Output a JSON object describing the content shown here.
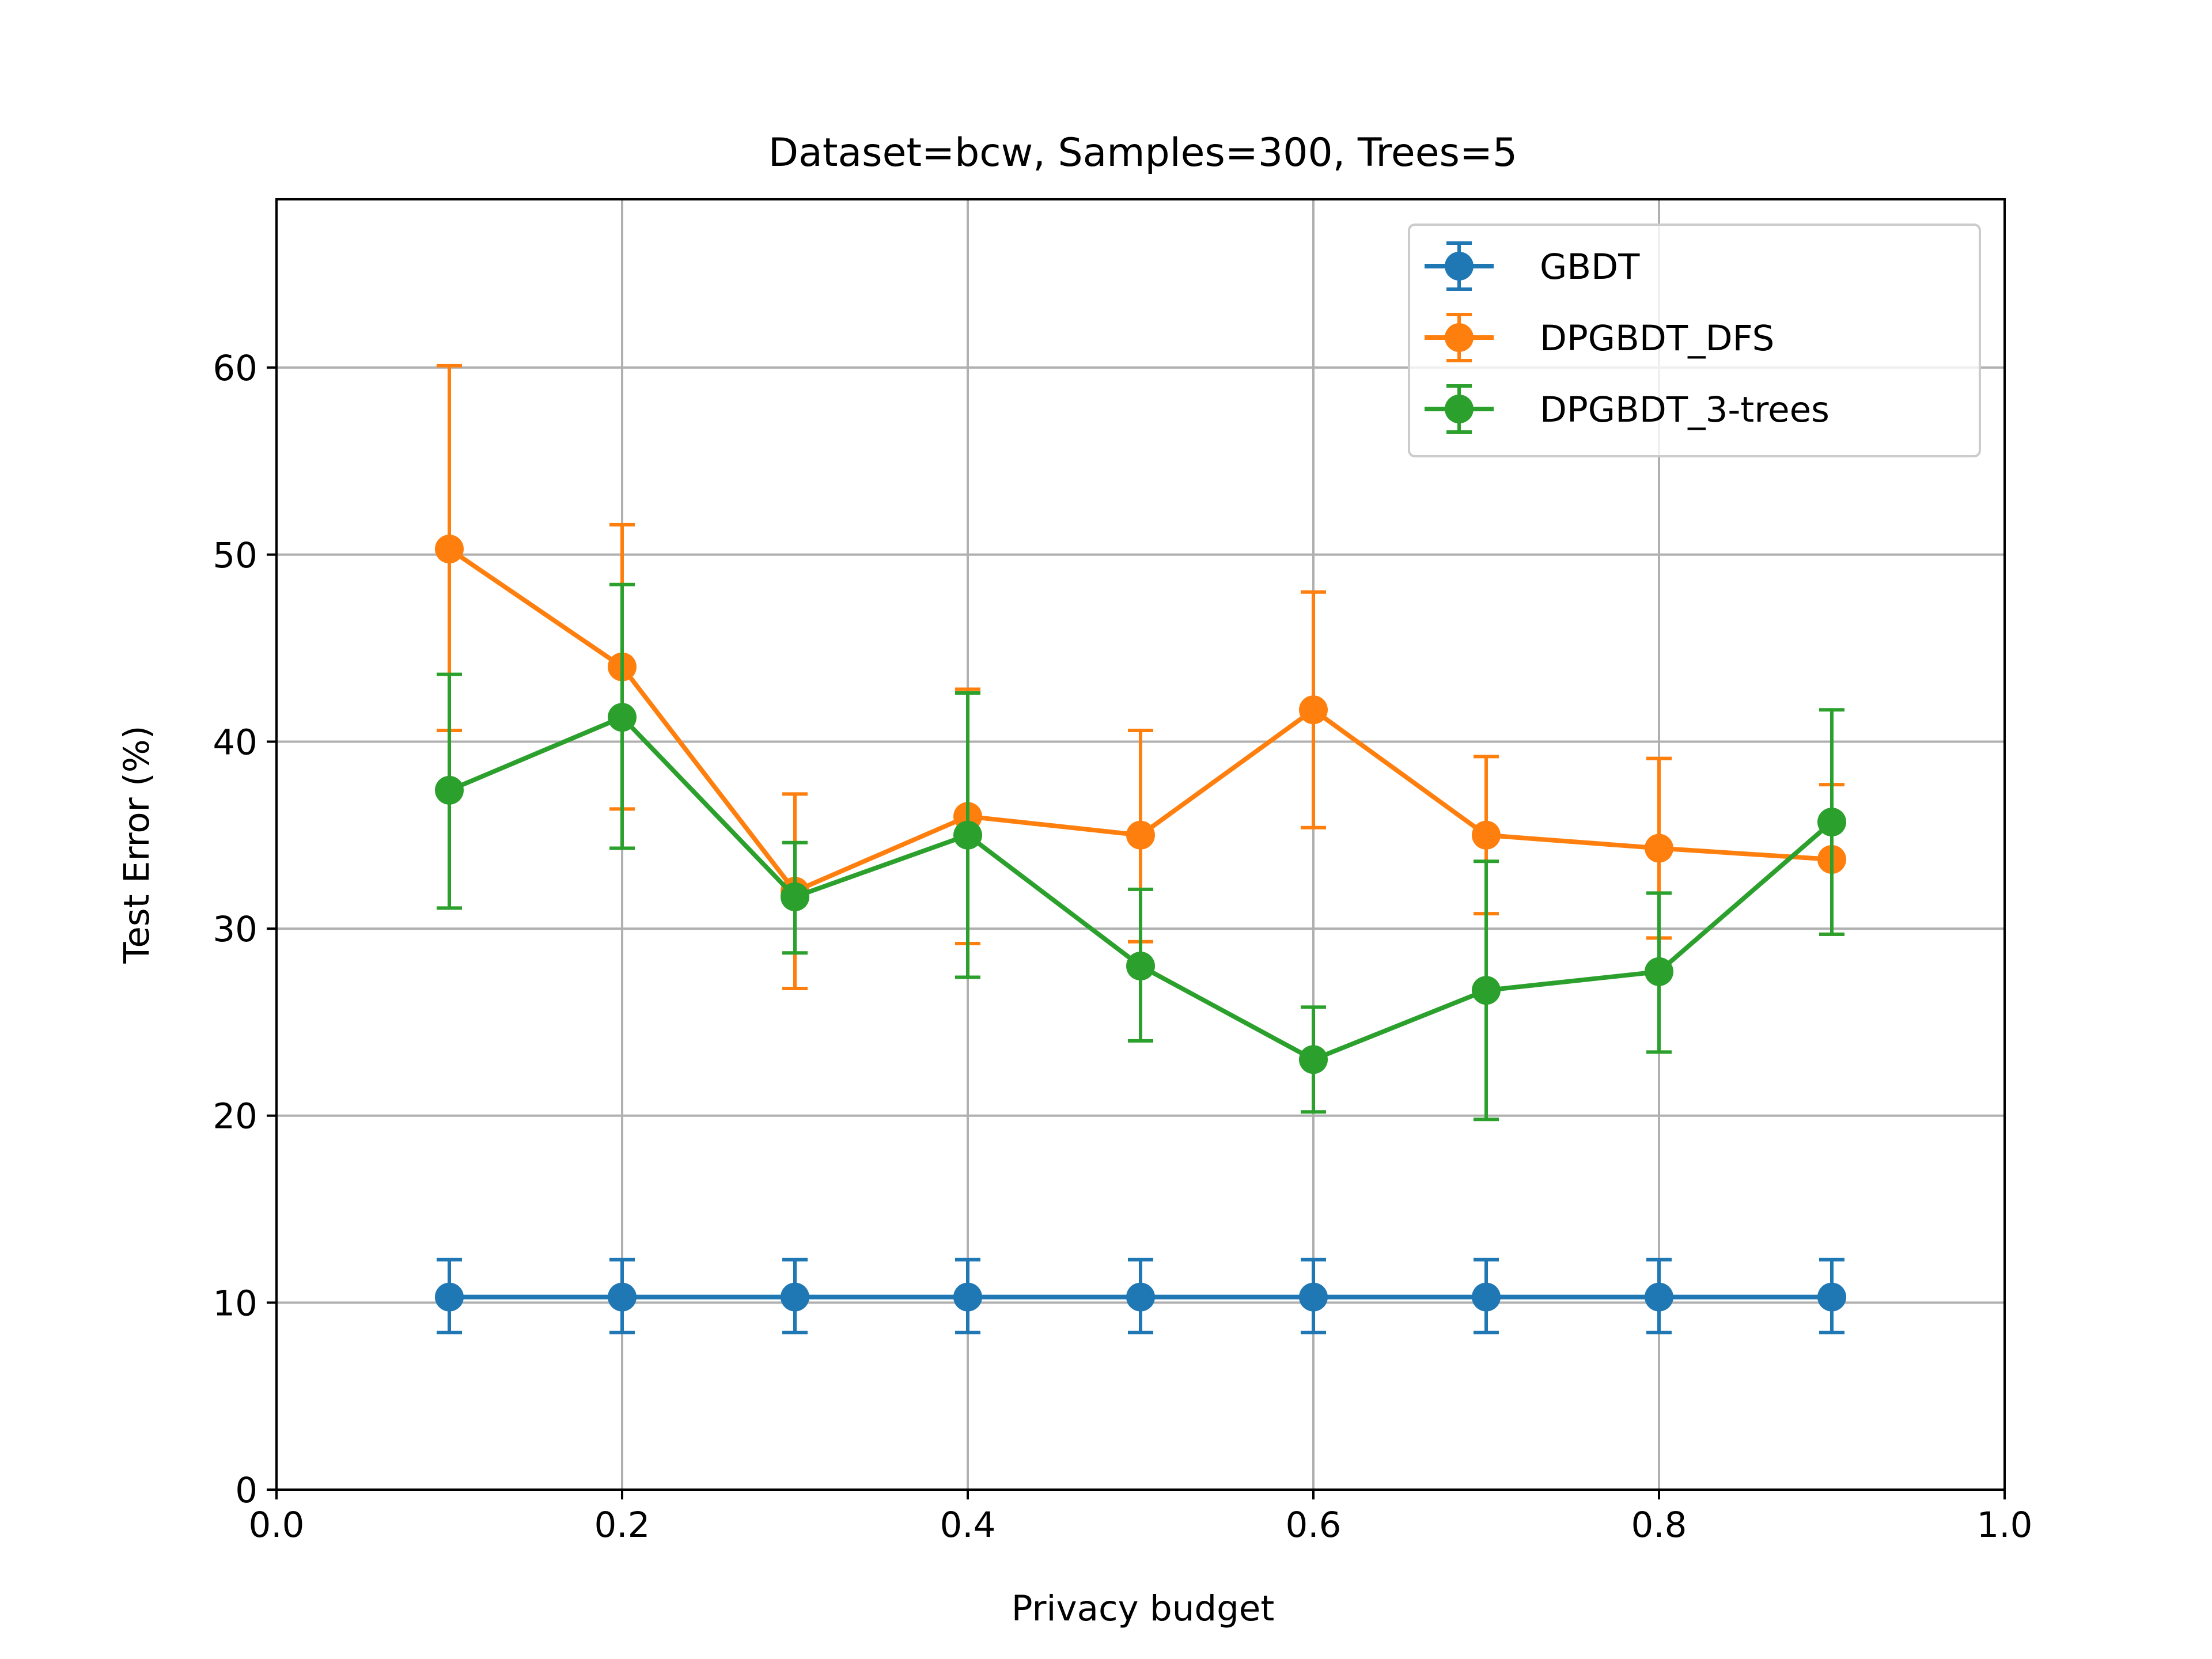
{
  "chart_data": {
    "type": "line",
    "title": "Dataset=bcw, Samples=300, Trees=5",
    "xlabel": "Privacy budget",
    "ylabel": "Test Error (%)",
    "xlim": [
      0.0,
      1.0
    ],
    "ylim": [
      0,
      69
    ],
    "xticks": [
      0.0,
      0.2,
      0.4,
      0.6,
      0.8,
      1.0
    ],
    "xtick_labels": [
      "0.0",
      "0.2",
      "0.4",
      "0.6",
      "0.8",
      "1.0"
    ],
    "yticks": [
      0,
      10,
      20,
      30,
      40,
      50,
      60
    ],
    "ytick_labels": [
      "0",
      "10",
      "20",
      "30",
      "40",
      "50",
      "60"
    ],
    "grid": true,
    "legend_position": "top-right",
    "x": [
      0.1,
      0.2,
      0.3,
      0.4,
      0.5,
      0.6,
      0.7,
      0.8,
      0.9
    ],
    "series": [
      {
        "name": "GBDT",
        "color": "#1f77b4",
        "values": [
          10.3,
          10.3,
          10.3,
          10.3,
          10.3,
          10.3,
          10.3,
          10.3,
          10.3
        ],
        "err_low": [
          8.4,
          8.4,
          8.4,
          8.4,
          8.4,
          8.4,
          8.4,
          8.4,
          8.4
        ],
        "err_high": [
          12.3,
          12.3,
          12.3,
          12.3,
          12.3,
          12.3,
          12.3,
          12.3,
          12.3
        ]
      },
      {
        "name": "DPGBDT_DFS",
        "color": "#ff7f0e",
        "values": [
          50.3,
          44.0,
          32.0,
          36.0,
          35.0,
          41.7,
          35.0,
          34.3,
          33.7
        ],
        "err_low": [
          40.6,
          36.4,
          26.8,
          29.2,
          29.3,
          35.4,
          30.8,
          29.5,
          29.7
        ],
        "err_high": [
          60.1,
          51.6,
          37.2,
          42.8,
          40.6,
          48.0,
          39.2,
          39.1,
          37.7
        ]
      },
      {
        "name": "DPGBDT_3-trees",
        "color": "#2ca02c",
        "values": [
          37.4,
          41.3,
          31.7,
          35.0,
          28.0,
          23.0,
          26.7,
          27.7,
          35.7
        ],
        "err_low": [
          31.1,
          34.3,
          28.7,
          27.4,
          24.0,
          20.2,
          19.8,
          23.4,
          29.7
        ],
        "err_high": [
          43.6,
          48.4,
          34.6,
          42.6,
          32.1,
          25.8,
          33.6,
          31.9,
          41.7
        ]
      }
    ]
  }
}
